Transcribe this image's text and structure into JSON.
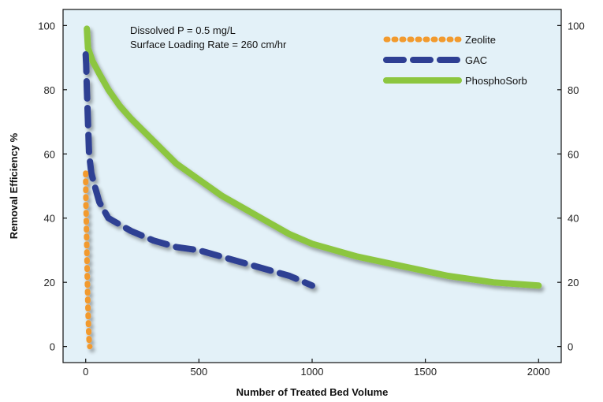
{
  "chart_data": {
    "type": "line",
    "title": "",
    "xlabel": "Number of Treated Bed Volume",
    "ylabel": "Removal Efficiency %",
    "xlim": [
      -100,
      2100
    ],
    "ylim": [
      -5,
      105
    ],
    "x_ticks": [
      0,
      500,
      1000,
      1500,
      2000
    ],
    "y_ticks": [
      0,
      20,
      40,
      60,
      80,
      100
    ],
    "secondary_y_ticks": [
      0,
      20,
      40,
      60,
      80,
      100
    ],
    "grid": false,
    "legend_position": "top-right",
    "annotations": [
      "Dissolved P = 0.5 mg/L",
      "Surface Loading Rate = 260 cm/hr"
    ],
    "series": [
      {
        "name": "Zeolite",
        "color": "#f29a2e",
        "style": "dotted",
        "x": [
          0,
          1,
          3,
          5,
          7,
          9,
          11,
          13,
          15,
          18
        ],
        "y": [
          54,
          45,
          38,
          30,
          22,
          15,
          9,
          5,
          2,
          0
        ]
      },
      {
        "name": "GAC",
        "color": "#2e3f93",
        "style": "dashed",
        "x": [
          0,
          2,
          5,
          10,
          15,
          25,
          40,
          60,
          100,
          200,
          300,
          400,
          500,
          600,
          700,
          800,
          900,
          1000
        ],
        "y": [
          91,
          88,
          80,
          70,
          60,
          54,
          50,
          45,
          40,
          36,
          33,
          31,
          30,
          28,
          26,
          24,
          22,
          19
        ]
      },
      {
        "name": "PhosphoSorb",
        "color": "#8cc63f",
        "style": "solid",
        "x": [
          5,
          10,
          30,
          60,
          100,
          150,
          200,
          300,
          400,
          500,
          600,
          700,
          800,
          900,
          1000,
          1200,
          1400,
          1600,
          1800,
          2000
        ],
        "y": [
          99,
          93,
          89,
          85,
          80,
          75,
          71,
          64,
          57,
          52,
          47,
          43,
          39,
          35,
          32,
          28,
          25,
          22,
          20,
          19
        ]
      }
    ]
  }
}
